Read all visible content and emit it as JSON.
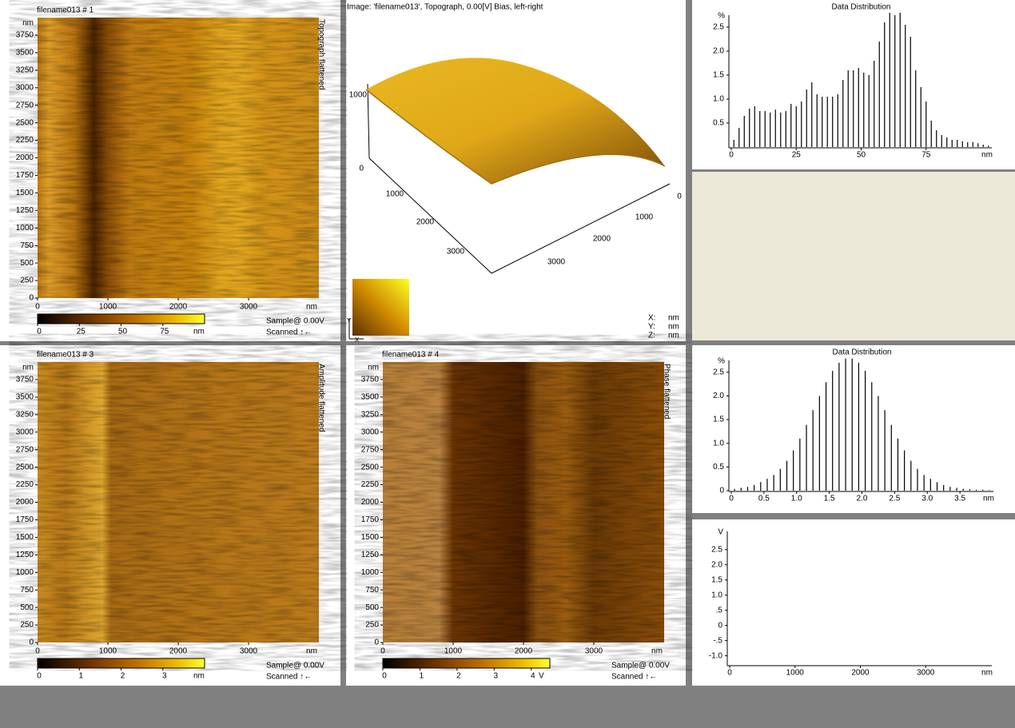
{
  "images": [
    {
      "title": "filename013 # 1",
      "channel": "Topograph flattened",
      "x_unit": "nm",
      "y_unit": "nm",
      "xlim": [
        0,
        4000
      ],
      "ylim": [
        0,
        4000
      ],
      "xticks": [
        0,
        1000,
        2000,
        3000
      ],
      "yticks": [
        0,
        250,
        500,
        750,
        1000,
        1250,
        1500,
        1750,
        2000,
        2250,
        2500,
        2750,
        3000,
        3250,
        3500,
        3750
      ],
      "colorbar": {
        "lim": [
          0,
          100
        ],
        "ticks": [
          0,
          25,
          50,
          75
        ],
        "unit": "nm"
      },
      "sample": "Sample@ 0.00V",
      "scanned": "Scanned ↑←"
    },
    {
      "title": "filename013 # 3",
      "channel": "Amplitude flattened",
      "x_unit": "nm",
      "y_unit": "nm",
      "xlim": [
        0,
        4000
      ],
      "ylim": [
        0,
        4000
      ],
      "xticks": [
        0,
        1000,
        2000,
        3000
      ],
      "yticks": [
        0,
        250,
        500,
        750,
        1000,
        1250,
        1500,
        1750,
        2000,
        2250,
        2500,
        2750,
        3000,
        3250,
        3500,
        3750
      ],
      "colorbar": {
        "lim": [
          0,
          4
        ],
        "ticks": [
          0,
          1,
          2,
          3
        ],
        "unit": "nm"
      },
      "sample": "Sample@ 0.00V",
      "scanned": "Scanned ↑←"
    },
    {
      "title": "filename013 # 4",
      "channel": "Phase flattened",
      "x_unit": "nm",
      "y_unit": "nm",
      "xlim": [
        0,
        4000
      ],
      "ylim": [
        0,
        4000
      ],
      "xticks": [
        0,
        1000,
        2000,
        3000
      ],
      "yticks": [
        0,
        250,
        500,
        750,
        1000,
        1250,
        1500,
        1750,
        2000,
        2250,
        2500,
        2750,
        3000,
        3250,
        3500,
        3750
      ],
      "colorbar": {
        "lim": [
          0,
          4.5
        ],
        "ticks": [
          0,
          1,
          2,
          3,
          4
        ],
        "unit": "V"
      },
      "sample": "Sample@ 0.00V",
      "scanned": "Scanned ↑←"
    }
  ],
  "view3d": {
    "title": "Image: 'filename013', Topograph, 0.00[V] Bias, left-right",
    "z_ticks": [
      1000,
      0
    ],
    "y_ticks": [
      1000,
      2000,
      3000
    ],
    "x_ticks": [
      0,
      1000,
      2000,
      3000
    ],
    "colorbar_axes": [
      "Y",
      "X"
    ],
    "units": [
      {
        "axis": "X:",
        "unit": "nm"
      },
      {
        "axis": "Y:",
        "unit": "nm"
      },
      {
        "axis": "Z:",
        "unit": "nm"
      }
    ]
  },
  "histograms": [
    {
      "title": "Data Distribution",
      "y_unit": "%",
      "x_unit": "nm",
      "color": "#000000",
      "xlim": [
        0,
        100
      ],
      "ylim": [
        0,
        2.75
      ],
      "xticks": [
        0,
        25,
        50,
        75
      ],
      "yticks": [
        0.5,
        {
          "value": 1,
          "label": "1.0"
        },
        1.5,
        {
          "value": 2,
          "label": "2.0"
        },
        2.5
      ],
      "x": [
        1,
        3,
        5,
        7,
        9,
        11,
        13,
        15,
        17,
        19,
        21,
        23,
        25,
        27,
        29,
        31,
        33,
        35,
        37,
        39,
        41,
        43,
        45,
        47,
        49,
        51,
        53,
        55,
        57,
        59,
        61,
        63,
        65,
        67,
        69,
        71,
        73,
        75,
        77,
        79,
        81,
        83,
        85,
        87,
        89,
        91,
        93,
        95,
        97,
        99
      ],
      "values": [
        0.15,
        0.4,
        0.65,
        0.8,
        0.85,
        0.75,
        0.75,
        0.72,
        0.78,
        0.72,
        0.75,
        0.9,
        0.85,
        0.95,
        1.2,
        1.35,
        1.1,
        1.05,
        1.05,
        1.05,
        1.1,
        1.4,
        1.6,
        1.6,
        1.65,
        1.55,
        1.5,
        1.8,
        2.2,
        2.6,
        2.8,
        2.75,
        2.8,
        2.55,
        2.3,
        1.6,
        1.25,
        0.95,
        0.55,
        0.35,
        0.25,
        0.2,
        0.15,
        0.15,
        0.12,
        0.1,
        0.1,
        0.08,
        0.05,
        0.03
      ]
    },
    {
      "title": "Data Distribution",
      "y_unit": "%",
      "x_unit": "nm",
      "color": "#000000",
      "xlim": [
        0,
        4
      ],
      "ylim": [
        0,
        2.75
      ],
      "xticks": [
        0,
        0.5,
        {
          "value": 1,
          "label": "1.0"
        },
        1.5,
        {
          "value": 2,
          "label": "2.0"
        },
        2.5,
        {
          "value": 3,
          "label": "3.0"
        },
        3.5
      ],
      "yticks": [
        0,
        0.5,
        {
          "value": 1,
          "label": "1.0"
        },
        1.5,
        {
          "value": 2,
          "label": "2.0"
        },
        2.5
      ],
      "x": [
        0.05,
        0.15,
        0.25,
        0.35,
        0.45,
        0.55,
        0.65,
        0.75,
        0.85,
        0.95,
        1.05,
        1.15,
        1.25,
        1.35,
        1.45,
        1.55,
        1.65,
        1.75,
        1.85,
        1.95,
        2.05,
        2.15,
        2.25,
        2.35,
        2.45,
        2.55,
        2.65,
        2.75,
        2.85,
        2.95,
        3.05,
        3.15,
        3.25,
        3.35,
        3.45,
        3.55,
        3.65,
        3.75,
        3.85,
        3.95
      ],
      "values": [
        0.04,
        0.06,
        0.08,
        0.12,
        0.18,
        0.25,
        0.33,
        0.46,
        0.63,
        0.85,
        1.1,
        1.39,
        1.7,
        2.0,
        2.29,
        2.53,
        2.7,
        2.79,
        2.79,
        2.7,
        2.53,
        2.29,
        2.0,
        1.7,
        1.39,
        1.1,
        0.85,
        0.63,
        0.46,
        0.33,
        0.25,
        0.18,
        0.12,
        0.08,
        0.06,
        0.04,
        0.03,
        0.02,
        0.02,
        0.01
      ]
    }
  ],
  "line_plot": {
    "y_unit": "V",
    "x_unit": "nm",
    "xlim": [
      0,
      4000
    ],
    "ylim": [
      -1.3,
      3.1
    ],
    "xticks": [
      0,
      1000,
      2000,
      3000
    ],
    "yticks": [
      2.5,
      {
        "value": 2,
        "label": "2.0"
      },
      1.5,
      {
        "value": 1,
        "label": "1.0"
      },
      {
        "value": 0.5,
        "label": ".5"
      },
      0,
      {
        "value": -0.5,
        "label": "-.5"
      },
      {
        "value": -1,
        "label": "-1.0"
      }
    ]
  }
}
